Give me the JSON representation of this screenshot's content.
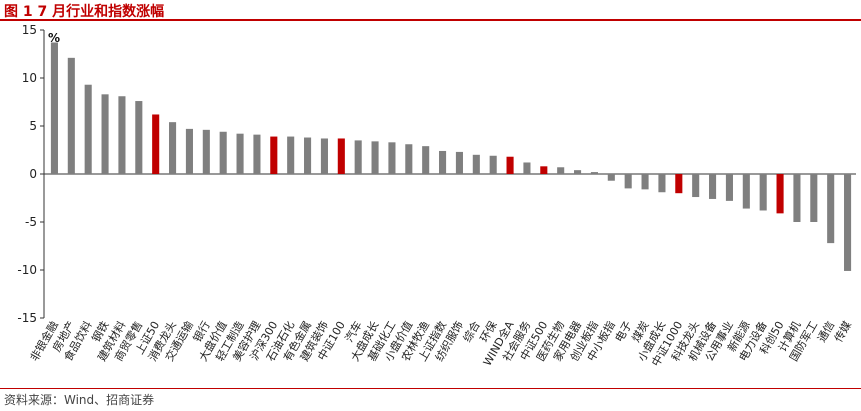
{
  "title": "图 1 7 月行业和指数涨幅",
  "source": "资料来源：Wind、招商证券",
  "chart_data": {
    "type": "bar",
    "unit": "%",
    "ylim": [
      -15,
      15
    ],
    "yticks": [
      15,
      10,
      5,
      0,
      -5,
      -10,
      -15
    ],
    "grid": false,
    "colors": {
      "sector": "#7f7f7f",
      "index": "#c00000"
    },
    "categories": [
      "非银金融",
      "房地产",
      "食品饮料",
      "钢铁",
      "建筑材料",
      "商贸零售",
      "上证50",
      "消费龙头",
      "交通运输",
      "银行",
      "大盘价值",
      "轻工制造",
      "美容护理",
      "沪深300",
      "石油石化",
      "有色金属",
      "建筑装饰",
      "中证100",
      "汽车",
      "大盘成长",
      "基础化工",
      "小盘价值",
      "农林牧渔",
      "上证指数",
      "纺织服饰",
      "综合",
      "环保",
      "WIND全A",
      "社会服务",
      "中证500",
      "医药生物",
      "家用电器",
      "创业板指",
      "中小板指",
      "电子",
      "煤炭",
      "小盘成长",
      "中证1000",
      "科技龙头",
      "机械设备",
      "公用事业",
      "新能源",
      "电力设备",
      "科创50",
      "计算机",
      "国防军工",
      "通信",
      "传媒"
    ],
    "values": [
      13.7,
      12.1,
      9.3,
      8.3,
      8.1,
      7.6,
      6.2,
      5.4,
      4.7,
      4.6,
      4.4,
      4.2,
      4.1,
      3.9,
      3.9,
      3.8,
      3.7,
      3.7,
      3.5,
      3.4,
      3.3,
      3.1,
      2.9,
      2.4,
      2.3,
      2.0,
      1.9,
      1.8,
      1.2,
      0.8,
      0.7,
      0.4,
      0.2,
      -0.7,
      -1.5,
      -1.6,
      -1.9,
      -2.0,
      -2.4,
      -2.6,
      -2.8,
      -3.6,
      -3.8,
      -4.1,
      -5.0,
      -5.0,
      -7.2,
      -10.1
    ],
    "highlight": [
      "上证50",
      "沪深300",
      "中证100",
      "WIND全A",
      "中证500",
      "中证1000",
      "科创50"
    ]
  }
}
